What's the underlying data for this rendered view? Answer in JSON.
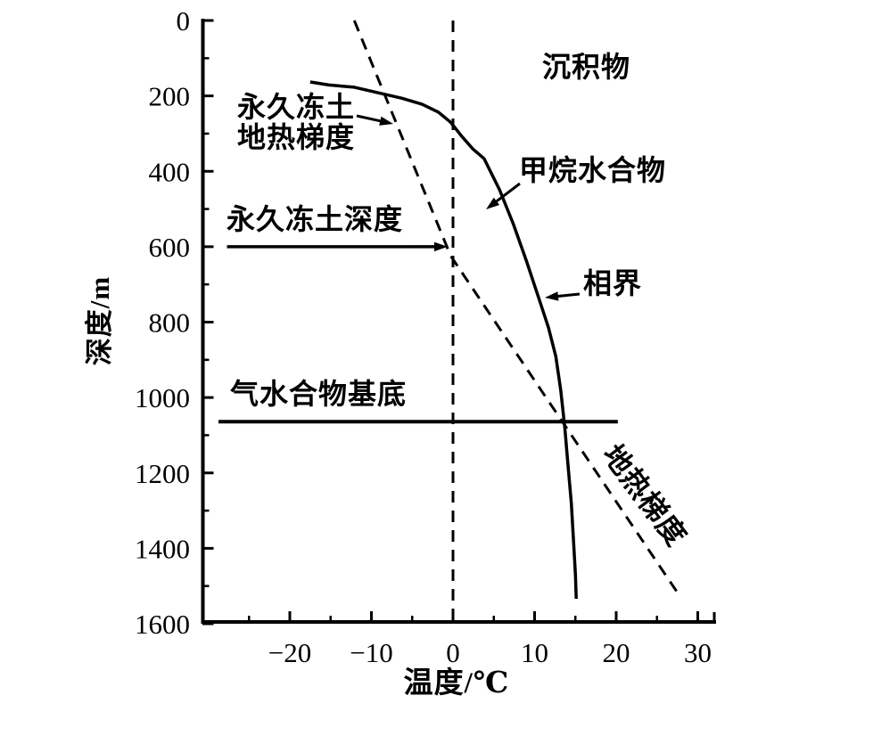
{
  "chart_data": {
    "type": "line",
    "title": "",
    "xlabel": "温度/℃",
    "ylabel": "深度/m",
    "x_axis": {
      "label": "温度/℃",
      "min": -31,
      "max": 32,
      "major_ticks": [
        -20,
        -10,
        0,
        10,
        20,
        30
      ],
      "tick_labels": [
        "−20",
        "−10",
        "0",
        "10",
        "20",
        "30"
      ],
      "minor_ticks": [
        -25,
        -15,
        -5,
        5,
        15,
        25
      ],
      "end_tick": true
    },
    "y_axis": {
      "label": "深度/m",
      "min": 0,
      "max": 1600,
      "direction": "down",
      "major_ticks": [
        0,
        200,
        400,
        600,
        800,
        1000,
        1200,
        1400,
        1600
      ],
      "tick_labels": [
        "0",
        "200",
        "400",
        "600",
        "800",
        "1000",
        "1200",
        "1400",
        "1600"
      ],
      "minor_ticks": [
        100,
        300,
        500,
        700,
        900,
        1100,
        1300,
        1500
      ]
    },
    "series": [
      {
        "id": "phase-boundary-curve",
        "label": "相界",
        "style": "solid",
        "points": [
          [
            -17.5,
            163
          ],
          [
            -15.2,
            171
          ],
          [
            -12.1,
            177
          ],
          [
            -9.5,
            190
          ],
          [
            -6.3,
            206
          ],
          [
            -3.8,
            222
          ],
          [
            -1.8,
            243
          ],
          [
            -0.3,
            270
          ],
          [
            1.0,
            305
          ],
          [
            2.4,
            340
          ],
          [
            3.8,
            366
          ],
          [
            5.7,
            449
          ],
          [
            7.4,
            540
          ],
          [
            9.0,
            638
          ],
          [
            10.6,
            742
          ],
          [
            11.7,
            815
          ],
          [
            12.6,
            891
          ],
          [
            13.2,
            980
          ],
          [
            13.7,
            1080
          ],
          [
            14.1,
            1180
          ],
          [
            14.5,
            1280
          ],
          [
            14.8,
            1390
          ],
          [
            15.0,
            1470
          ],
          [
            15.1,
            1534
          ]
        ]
      },
      {
        "id": "geotherm",
        "label": "地热梯度",
        "style": "dashed",
        "points": [
          [
            -12.1,
            0
          ],
          [
            -0.3,
            624
          ],
          [
            27.9,
            1530
          ]
        ]
      },
      {
        "id": "zero-degree-line",
        "label": "0℃",
        "style": "dashed",
        "points": [
          [
            0,
            0
          ],
          [
            0,
            1600
          ]
        ]
      }
    ],
    "reference_lines": [
      {
        "id": "permafrost-depth",
        "label": "永久冻土深度",
        "depth_m": 600,
        "t_from": -27.7,
        "t_to": -0.66,
        "arrow_at_end": true,
        "width": 3.5
      },
      {
        "id": "hydrate-base",
        "label": "气水合物基底",
        "depth_m": 1064,
        "t_from": -28.74,
        "t_to": 20.2,
        "arrow_at_end": false,
        "width": 4
      }
    ],
    "annotations": [
      {
        "id": "sediment",
        "text": "沉积物"
      },
      {
        "id": "permafrost-geotherm",
        "text_line1": "永久冻土",
        "text_line2": "地热梯度",
        "arrow": true
      },
      {
        "id": "methane-hydrate",
        "text": "甲烷水合物",
        "arrow": true
      },
      {
        "id": "phase-boundary",
        "text": "相界",
        "arrow": true
      },
      {
        "id": "geothermal-gradient",
        "text": "地热梯度",
        "rotated": true
      }
    ],
    "colors": {
      "ink": "#000000",
      "background": "#ffffff"
    }
  }
}
